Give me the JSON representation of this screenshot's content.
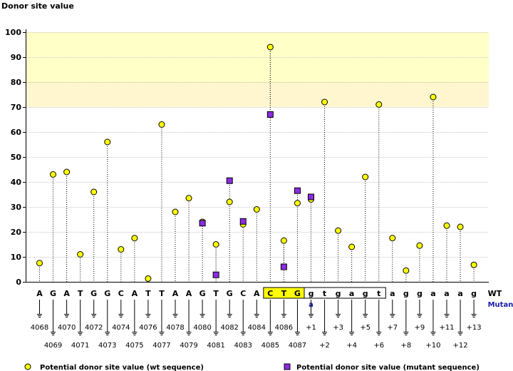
{
  "chart_data": {
    "type": "scatter",
    "title": "Donor site value",
    "ylim": [
      0,
      100
    ],
    "yticks": [
      0,
      10,
      20,
      30,
      40,
      50,
      60,
      70,
      80,
      90,
      100
    ],
    "highlight_band": [
      80,
      100
    ],
    "grid": true,
    "sequence": [
      "A",
      "G",
      "A",
      "T",
      "G",
      "G",
      "C",
      "A",
      "T",
      "T",
      "A",
      "A",
      "G",
      "T",
      "G",
      "C",
      "A",
      "C",
      "T",
      "G",
      "g",
      "t",
      "g",
      "a",
      "g",
      "t",
      "a",
      "g",
      "g",
      "a",
      "a",
      "a",
      "g"
    ],
    "positions": [
      "4068",
      "4069",
      "4070",
      "4071",
      "4072",
      "4073",
      "4074",
      "4075",
      "4076",
      "4077",
      "4078",
      "4079",
      "4080",
      "4081",
      "4082",
      "4083",
      "4084",
      "4085",
      "4086",
      "4087",
      "+1",
      "+2",
      "+3",
      "+4",
      "+5",
      "+6",
      "+7",
      "+8",
      "+9",
      "+10",
      "+11",
      "+12",
      "+13"
    ],
    "highlighted_exon": [
      "C",
      "T",
      "G"
    ],
    "boxed_intron": [
      "g",
      "t",
      "g",
      "a",
      "g",
      "t"
    ],
    "mutant_base": "a",
    "row_labels": {
      "wt": "WT",
      "mutant": "Mutant"
    },
    "series": [
      {
        "name": "Potential donor site value (wt sequence)",
        "color": "#ffff00",
        "marker": "circle",
        "values": [
          7.5,
          43,
          44,
          11,
          36,
          56,
          13,
          17.5,
          1.3,
          63,
          28,
          33.5,
          24,
          15,
          32,
          23,
          29,
          94,
          16.5,
          31.5,
          33,
          72,
          20.5,
          14,
          42,
          71,
          17.5,
          4.5,
          14.5,
          74,
          22.5,
          22,
          6.8
        ]
      },
      {
        "name": "Potential donor site value (mutant sequence)",
        "color": "#8b2be2",
        "marker": "square",
        "points": [
          {
            "index": 12,
            "value": 23.5
          },
          {
            "index": 13,
            "value": 2.8
          },
          {
            "index": 14,
            "value": 40.5
          },
          {
            "index": 15,
            "value": 24.2
          },
          {
            "index": 17,
            "value": 67
          },
          {
            "index": 18,
            "value": 6
          },
          {
            "index": 19,
            "value": 36.5
          },
          {
            "index": 20,
            "value": 34
          }
        ]
      }
    ]
  }
}
